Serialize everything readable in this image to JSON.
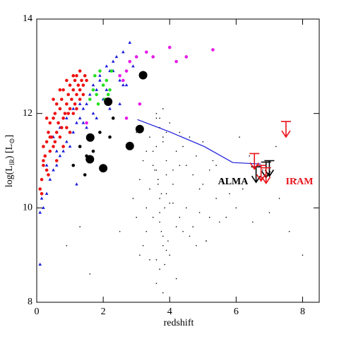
{
  "chart_data": {
    "type": "scatter",
    "xlabel": "redshift",
    "ylabel": [
      "log(L",
      "IR",
      ") [L",
      "⊙",
      "]"
    ],
    "xlim": [
      0,
      8.5
    ],
    "ylim": [
      8,
      14
    ],
    "xticks": [
      0,
      2,
      4,
      6,
      8
    ],
    "yticks": [
      8,
      10,
      12,
      14
    ],
    "annotations": [
      {
        "text": "ALMA",
        "color": "#000000"
      },
      {
        "text": "IRAM",
        "color": "#e8141b"
      }
    ],
    "series": [
      {
        "marker": "dot",
        "color": "#000000",
        "x": [
          2.9,
          3.0,
          3.1,
          3.2,
          3.3,
          3.4,
          3.5,
          3.6,
          3.7,
          3.8,
          3.9,
          4.0,
          4.1,
          4.2,
          4.3,
          4.4,
          4.5,
          4.6,
          4.7,
          4.8,
          4.9,
          5.0,
          5.1,
          5.2,
          5.3,
          5.4,
          5.5,
          5.6,
          5.8,
          6.0,
          3.6,
          3.7,
          3.8,
          3.9,
          3.65,
          3.75,
          3.85,
          3.7,
          3.8,
          3.9,
          3.6,
          3.7,
          3.8,
          3.5,
          3.4,
          3.3,
          4.0,
          4.1,
          4.2,
          4.3,
          3.0,
          3.2,
          3.4,
          3.6,
          4.4,
          4.6,
          4.8,
          5.0,
          5.2,
          5.4,
          6.2,
          6.5,
          6.8,
          7.0,
          7.3,
          7.6,
          8.0,
          6.4,
          7.8,
          7.2,
          3.1,
          3.3,
          3.5,
          3.7,
          3.9,
          4.1,
          4.3,
          4.5,
          4.7,
          4.9,
          3.8,
          3.7,
          3.6,
          3.9,
          4.0,
          3.75,
          3.85,
          3.65,
          3.55,
          3.95,
          1.3,
          0.9,
          1.6,
          5.1,
          5.7,
          6.1,
          3.6,
          3.8,
          4.2,
          2.5
        ],
        "values": [
          10.2,
          9.8,
          10.6,
          11.0,
          9.5,
          10.4,
          11.2,
          10.8,
          9.9,
          11.5,
          10.3,
          11.8,
          10.1,
          9.6,
          10.9,
          11.3,
          10.0,
          9.4,
          10.7,
          11.1,
          9.9,
          10.5,
          9.3,
          10.8,
          11.0,
          10.2,
          9.7,
          10.6,
          10.3,
          10.0,
          12.0,
          11.7,
          11.4,
          11.0,
          10.6,
          10.3,
          10.0,
          9.7,
          9.4,
          9.1,
          8.9,
          8.7,
          9.2,
          10.9,
          11.5,
          11.2,
          9.0,
          10.5,
          11.2,
          9.8,
          11.6,
          9.2,
          8.9,
          11.9,
          9.5,
          11.5,
          9.2,
          11.4,
          9.8,
          10.9,
          10.4,
          9.7,
          10.8,
          9.9,
          10.2,
          9.5,
          9.0,
          11.1,
          10.6,
          11.3,
          9.0,
          10.0,
          9.8,
          10.2,
          11.6,
          10.8,
          11.6,
          10.9,
          9.6,
          10.4,
          12.1,
          11.9,
          11.3,
          10.7,
          10.1,
          9.5,
          8.8,
          10.5,
          10.8,
          9.3,
          9.6,
          9.2,
          8.6,
          9.3,
          9.8,
          11.5,
          8.4,
          8.2,
          8.5,
          9.5
        ]
      },
      {
        "marker": "triangle",
        "color": "#1a1adb",
        "x": [
          0.1,
          0.1,
          0.15,
          0.2,
          0.3,
          0.4,
          0.5,
          0.6,
          0.7,
          0.8,
          0.9,
          1.0,
          1.1,
          1.2,
          1.3,
          1.4,
          1.5,
          1.6,
          1.7,
          1.8,
          1.9,
          2.0,
          2.1,
          2.2,
          2.3,
          2.4,
          2.5,
          2.6,
          2.7,
          2.8,
          0.5,
          0.7,
          0.9,
          1.1,
          1.3,
          1.5,
          1.7,
          1.9,
          2.1,
          2.3,
          2.5,
          0.3,
          0.6,
          1.0,
          1.4,
          1.8,
          2.2,
          2.6,
          2.9,
          1.2
        ],
        "values": [
          8.8,
          9.9,
          10.2,
          10.0,
          10.3,
          10.6,
          10.8,
          10.9,
          11.1,
          11.2,
          11.4,
          11.3,
          11.6,
          11.8,
          11.9,
          12.1,
          12.2,
          12.4,
          12.6,
          12.5,
          12.8,
          12.3,
          13.0,
          12.9,
          13.1,
          13.2,
          12.7,
          13.3,
          12.6,
          13.5,
          11.5,
          11.7,
          11.9,
          12.1,
          12.2,
          11.7,
          12.0,
          12.7,
          12.5,
          12.9,
          12.2,
          10.9,
          11.2,
          11.6,
          11.8,
          11.9,
          12.1,
          12.6,
          13.0,
          10.5
        ]
      },
      {
        "marker": "circle",
        "color": "#f01010",
        "x": [
          0.1,
          0.15,
          0.2,
          0.2,
          0.25,
          0.3,
          0.3,
          0.35,
          0.4,
          0.4,
          0.45,
          0.5,
          0.5,
          0.55,
          0.6,
          0.6,
          0.65,
          0.7,
          0.7,
          0.75,
          0.8,
          0.8,
          0.85,
          0.9,
          0.9,
          0.95,
          1.0,
          1.0,
          1.05,
          1.1,
          1.1,
          1.15,
          1.2,
          1.2,
          1.25,
          1.3,
          1.3,
          1.35,
          1.4,
          1.45,
          0.3,
          0.5,
          0.7,
          0.9,
          1.1,
          1.3,
          0.2,
          0.4,
          0.6,
          0.8,
          1.0,
          1.2,
          0.15,
          0.35,
          0.55,
          0.75,
          0.95,
          1.15,
          1.4,
          1.5
        ],
        "values": [
          10.4,
          10.6,
          10.9,
          11.3,
          11.1,
          11.4,
          10.8,
          11.6,
          11.2,
          11.8,
          11.5,
          11.9,
          11.3,
          12.0,
          11.6,
          12.2,
          11.8,
          12.1,
          11.5,
          12.3,
          11.9,
          12.5,
          12.0,
          12.2,
          11.7,
          12.4,
          12.1,
          12.6,
          12.3,
          12.5,
          12.0,
          12.7,
          12.4,
          12.8,
          12.6,
          12.5,
          12.9,
          12.7,
          12.6,
          12.8,
          11.9,
          12.3,
          12.5,
          12.7,
          12.8,
          12.3,
          11.0,
          11.5,
          11.0,
          11.3,
          11.6,
          12.1,
          10.3,
          10.7,
          11.4,
          11.7,
          12.0,
          12.2,
          12.4,
          12.7
        ]
      },
      {
        "marker": "circle",
        "color": "#22e01e",
        "x": [
          1.6,
          1.7,
          1.75,
          1.8,
          1.9,
          2.0,
          2.05,
          2.1,
          2.2,
          2.25,
          1.85,
          2.15
        ],
        "values": [
          12.3,
          12.5,
          12.8,
          12.4,
          12.9,
          12.6,
          12.3,
          12.7,
          12.5,
          12.9,
          12.2,
          12.4
        ]
      },
      {
        "marker": "circle",
        "color": "#e818e8",
        "x": [
          1.5,
          2.5,
          2.6,
          2.7,
          2.8,
          3.0,
          3.1,
          3.3,
          3.5,
          4.0,
          4.2,
          4.5,
          5.3,
          2.7
        ],
        "values": [
          11.8,
          12.8,
          12.7,
          12.9,
          13.1,
          13.2,
          12.2,
          13.3,
          13.2,
          13.4,
          13.1,
          13.2,
          13.35,
          11.9
        ]
      },
      {
        "marker": "circle",
        "color": "#000000",
        "x": [
          1.3,
          1.5,
          1.45,
          1.7,
          1.9,
          2.2,
          2.3,
          1.1
        ],
        "values": [
          11.3,
          11.1,
          10.7,
          11.2,
          11.6,
          11.5,
          11.9,
          10.9
        ]
      },
      {
        "marker": "big-circle",
        "color": "#000000",
        "x": [
          1.61,
          1.6,
          2.0,
          2.15,
          3.2,
          3.1,
          2.8
        ],
        "values": [
          11.49,
          11.03,
          10.84,
          12.25,
          12.81,
          11.67,
          11.31
        ]
      },
      {
        "marker": "line",
        "color": "#1a1adb",
        "x": [
          3.03,
          4.0,
          5.04,
          5.9,
          6.74
        ],
        "values": [
          11.87,
          11.61,
          11.3,
          10.96,
          10.93
        ]
      },
      {
        "marker": "limit",
        "color": "#000000",
        "x": [
          6.6,
          6.9,
          7.0
        ],
        "values": [
          10.87,
          10.97,
          11.0
        ]
      },
      {
        "marker": "limit",
        "color": "#e8141b",
        "x": [
          6.55,
          6.75,
          6.9,
          7.5
        ],
        "values": [
          11.15,
          10.9,
          10.85,
          11.83
        ]
      }
    ]
  }
}
